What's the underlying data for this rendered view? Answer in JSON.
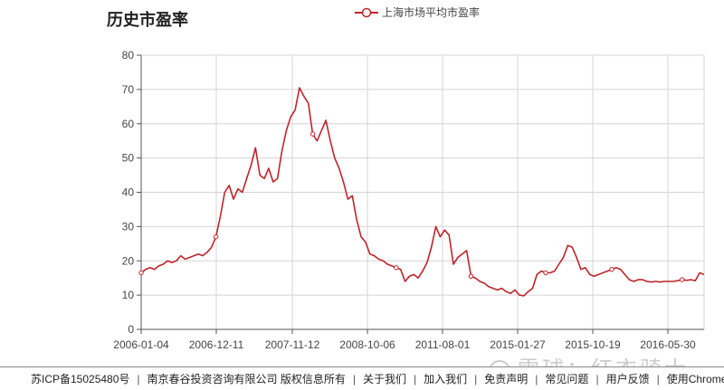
{
  "chart_data": {
    "type": "line",
    "title": "历史市盈率",
    "xlabel": "",
    "ylabel": "",
    "ylim": [
      0,
      80
    ],
    "y_ticks": [
      0,
      10,
      20,
      30,
      40,
      50,
      60,
      70,
      80
    ],
    "x_tick_labels": [
      "2006-01-04",
      "2006-12-11",
      "2007-11-12",
      "2008-10-06",
      "2011-08-01",
      "2015-01-27",
      "2015-10-19",
      "2016-05-30"
    ],
    "grid": true,
    "legend_position": "top",
    "line_color": "#c0242b",
    "series": [
      {
        "name": "上海市场平均市盈率",
        "values": [
          16.5,
          17.5,
          18,
          17.5,
          18.5,
          19,
          20,
          19.5,
          20,
          21.5,
          20.5,
          21,
          21.5,
          22,
          21.5,
          22.5,
          24,
          27,
          33,
          40,
          42,
          38,
          41,
          40,
          44,
          48,
          53,
          45,
          44,
          47,
          43,
          44,
          52,
          58,
          62,
          64,
          70.5,
          68,
          66,
          57,
          55,
          58,
          61,
          55,
          50,
          47,
          43,
          38,
          39,
          32,
          27,
          25.5,
          22,
          21.5,
          20.5,
          20,
          19,
          18.5,
          18,
          17.5,
          14,
          15.5,
          16,
          15,
          17,
          19.5,
          24,
          30,
          27,
          29,
          27.5,
          19,
          21,
          22,
          23,
          15.5,
          15,
          14,
          13.5,
          12.5,
          12,
          11.5,
          12,
          11,
          10.5,
          11.5,
          10,
          9.8,
          11,
          12,
          16,
          17,
          16.5,
          16.5,
          17,
          19,
          21,
          24.5,
          24,
          21,
          17.5,
          18,
          16,
          15.5,
          16,
          16.5,
          17,
          17.5,
          18,
          17.5,
          16,
          14.5,
          14,
          14.5,
          14.5,
          14,
          13.8,
          14,
          13.8,
          14,
          14,
          14,
          14.2,
          14.5,
          14.3,
          14.5,
          14.2,
          16.5,
          16
        ]
      }
    ]
  },
  "footer": {
    "items": [
      "苏ICP备15025480号",
      "南京春谷投资咨询有限公司 版权信息所有",
      "关于我们",
      "加入我们",
      "免责声明",
      "常见问题",
      "用户反馈",
      "使用Chrome"
    ],
    "separator": "|"
  },
  "watermark": {
    "text": "雪球：红衣骑士"
  }
}
